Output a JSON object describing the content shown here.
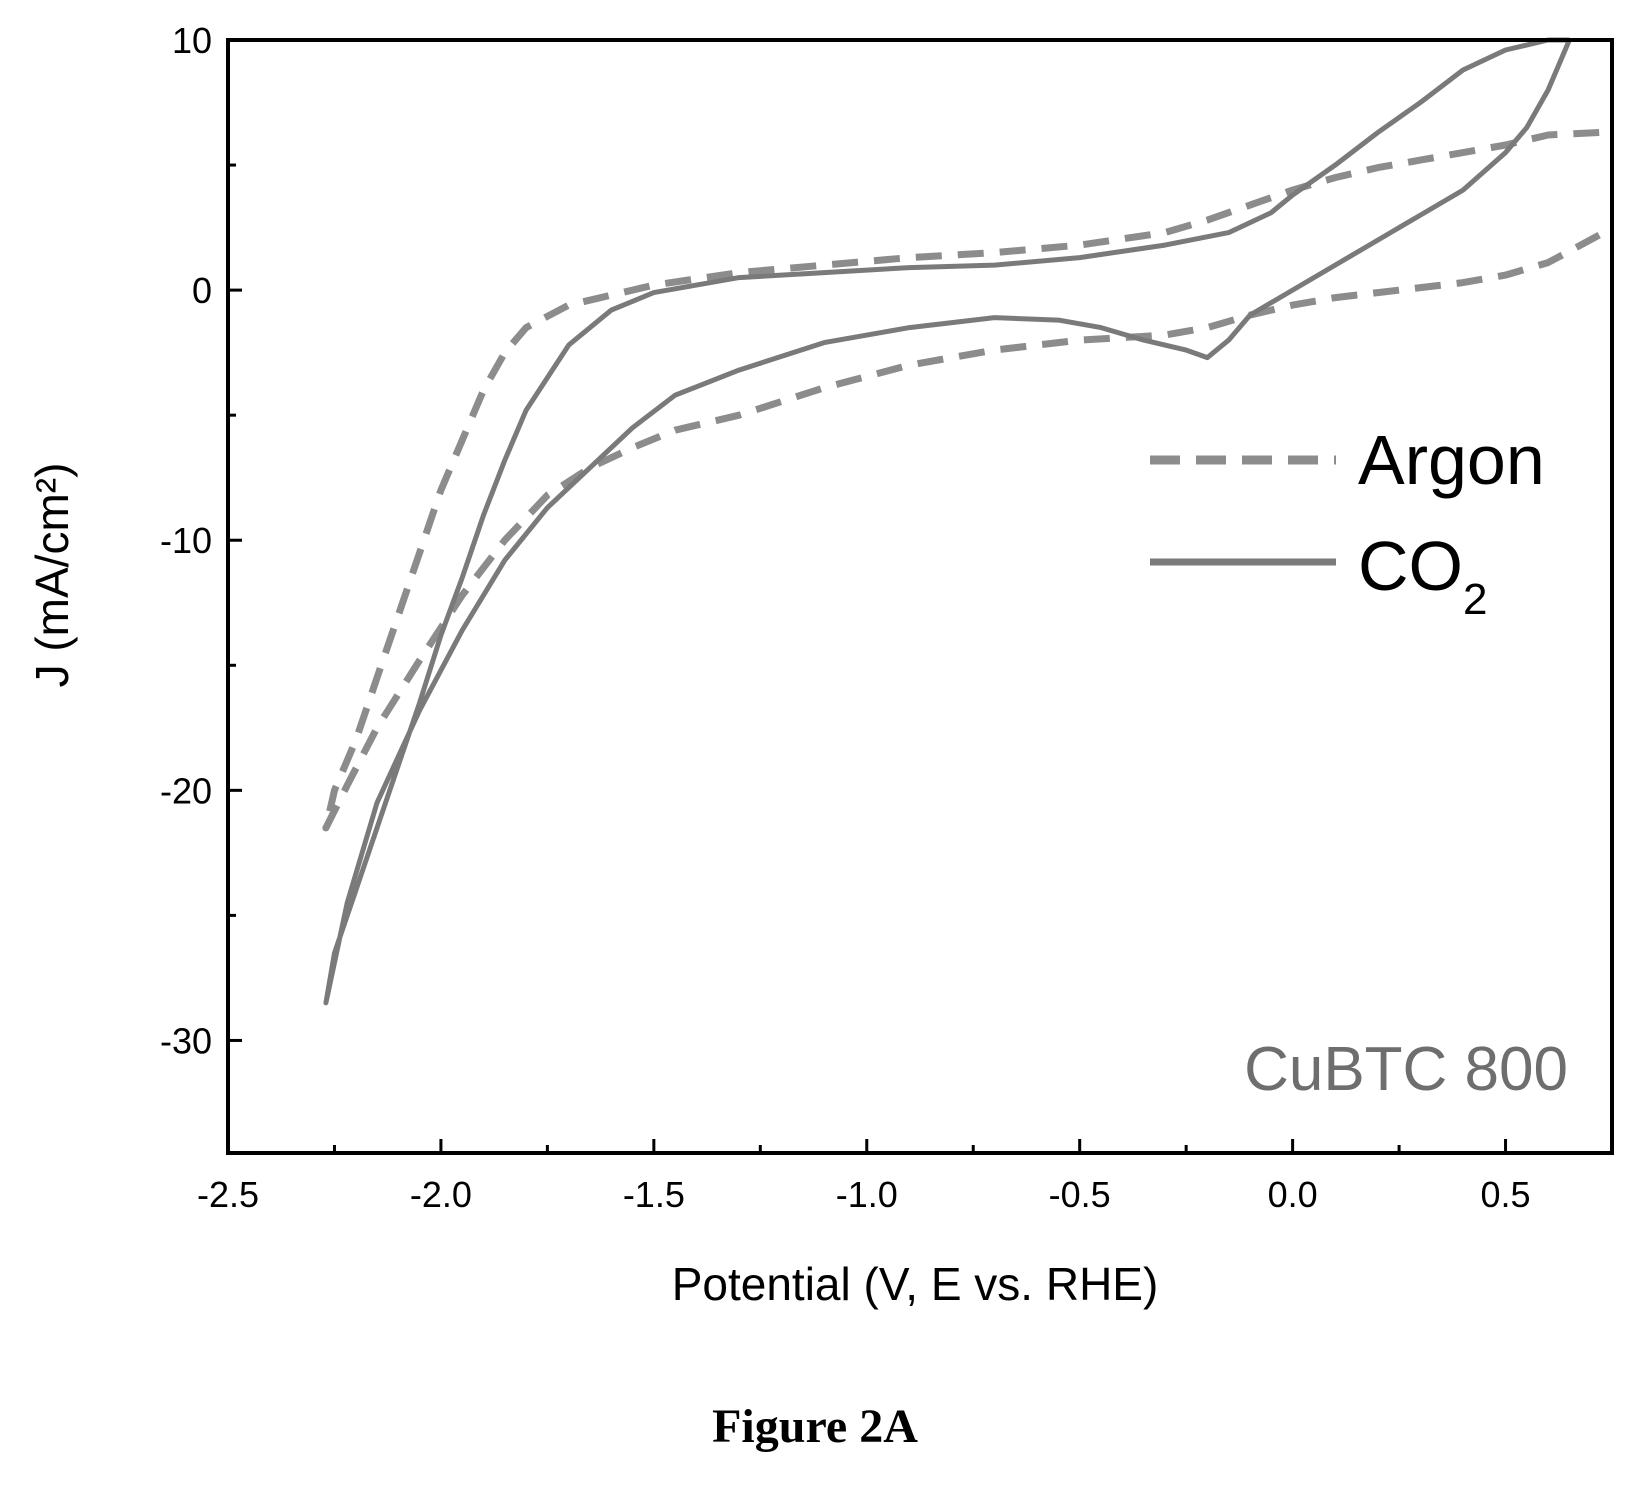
{
  "chart_data": {
    "type": "line",
    "xlabel": "Potential (V, E vs. RHE)",
    "ylabel": "J (mA/cm²)",
    "xlim": [
      -2.5,
      0.75
    ],
    "ylim": [
      -34.5,
      10
    ],
    "xticks": [
      -2.5,
      -2.0,
      -1.5,
      -1.0,
      -0.5,
      0.0,
      0.5
    ],
    "xtick_labels": [
      "-2.5",
      "-2.0",
      "-1.5",
      "-1.0",
      "-0.5",
      "0.0",
      "0.5"
    ],
    "yticks": [
      10,
      0,
      -10,
      -20,
      -30
    ],
    "ytick_labels": [
      "10",
      "0",
      "-10",
      "-20",
      "-30"
    ],
    "grid": false,
    "legend_position": "right",
    "annotation": "CuBTC 800",
    "caption": "Figure 2A",
    "series": [
      {
        "name": "Argon",
        "style": "dashed",
        "color": "#8c8c8c",
        "x": [
          0.72,
          0.6,
          0.5,
          0.4,
          0.3,
          0.2,
          0.1,
          0.0,
          -0.1,
          -0.2,
          -0.3,
          -0.5,
          -0.7,
          -0.9,
          -1.1,
          -1.3,
          -1.45,
          -1.55,
          -1.65,
          -1.75,
          -1.85,
          -1.95,
          -2.05,
          -2.15,
          -2.22,
          -2.27,
          -2.25,
          -2.2,
          -2.15,
          -2.1,
          -2.05,
          -2.0,
          -1.95,
          -1.9,
          -1.85,
          -1.8,
          -1.7,
          -1.6,
          -1.5,
          -1.3,
          -1.1,
          -0.9,
          -0.7,
          -0.5,
          -0.3,
          -0.2,
          -0.1,
          0.0,
          0.1,
          0.2,
          0.3,
          0.4,
          0.5,
          0.6,
          0.72
        ],
        "y": [
          2.2,
          1.1,
          0.6,
          0.3,
          0.1,
          -0.1,
          -0.3,
          -0.6,
          -1.0,
          -1.5,
          -1.8,
          -2.0,
          -2.4,
          -3.0,
          -3.9,
          -5.0,
          -5.6,
          -6.3,
          -7.1,
          -8.2,
          -10.0,
          -12.2,
          -14.8,
          -17.5,
          -19.8,
          -21.5,
          -20.0,
          -18.0,
          -15.5,
          -13.0,
          -10.5,
          -8.0,
          -6.0,
          -4.0,
          -2.5,
          -1.5,
          -0.6,
          -0.2,
          0.2,
          0.7,
          1.0,
          1.3,
          1.5,
          1.8,
          2.3,
          2.8,
          3.4,
          4.0,
          4.5,
          4.9,
          5.2,
          5.5,
          5.8,
          6.2,
          6.3
        ]
      },
      {
        "name": "CO2",
        "name_main": "CO",
        "name_sub": "2",
        "style": "solid",
        "color": "#7a7a7a",
        "x": [
          0.65,
          0.6,
          0.55,
          0.5,
          0.4,
          0.3,
          0.2,
          0.1,
          0.0,
          -0.1,
          -0.15,
          -0.2,
          -0.25,
          -0.35,
          -0.45,
          -0.55,
          -0.7,
          -0.9,
          -1.1,
          -1.3,
          -1.45,
          -1.55,
          -1.65,
          -1.75,
          -1.85,
          -1.95,
          -2.05,
          -2.15,
          -2.22,
          -2.27,
          -2.25,
          -2.2,
          -2.15,
          -2.1,
          -2.05,
          -2.0,
          -1.95,
          -1.9,
          -1.85,
          -1.8,
          -1.7,
          -1.6,
          -1.5,
          -1.3,
          -1.1,
          -0.9,
          -0.7,
          -0.5,
          -0.3,
          -0.15,
          -0.05,
          0.0,
          0.1,
          0.2,
          0.3,
          0.4,
          0.5,
          0.6,
          0.65
        ],
        "y": [
          10.0,
          8.0,
          6.5,
          5.5,
          4.0,
          3.0,
          2.0,
          1.0,
          0.0,
          -1.0,
          -2.0,
          -2.7,
          -2.4,
          -2.0,
          -1.5,
          -1.2,
          -1.1,
          -1.5,
          -2.1,
          -3.2,
          -4.2,
          -5.5,
          -7.1,
          -8.7,
          -10.8,
          -13.6,
          -16.8,
          -20.5,
          -24.5,
          -28.5,
          -26.5,
          -24.0,
          -21.5,
          -19.0,
          -16.5,
          -13.8,
          -11.5,
          -9.0,
          -6.8,
          -4.8,
          -2.2,
          -0.8,
          -0.1,
          0.5,
          0.7,
          0.9,
          1.0,
          1.3,
          1.8,
          2.3,
          3.1,
          3.8,
          5.0,
          6.3,
          7.5,
          8.8,
          9.6,
          10.0,
          10.0
        ]
      }
    ]
  }
}
